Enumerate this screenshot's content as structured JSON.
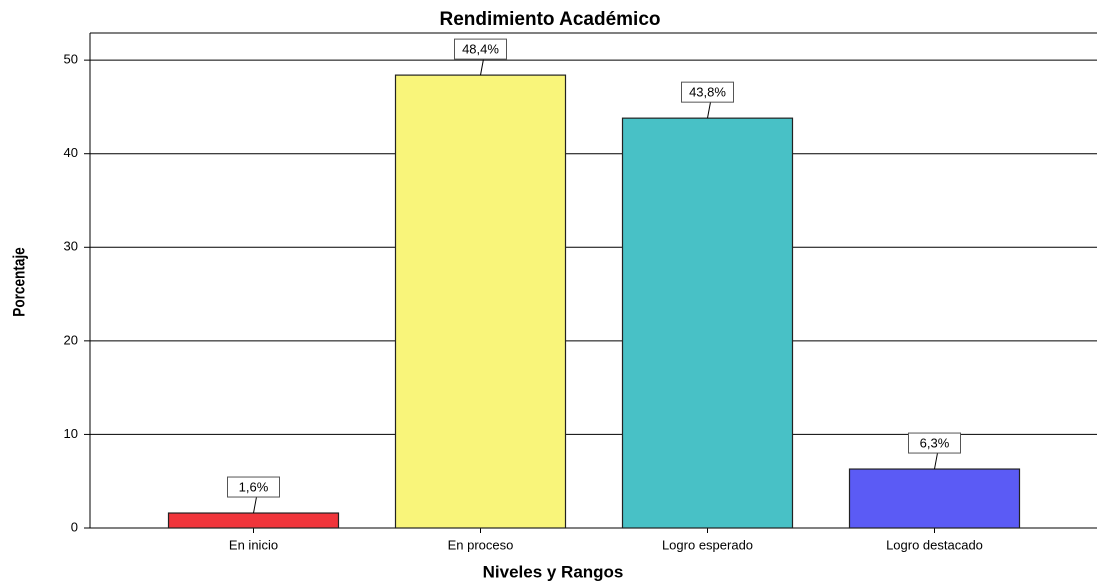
{
  "chart_data": {
    "type": "bar",
    "title": "Rendimiento Académico",
    "x_label": "Niveles y Rangos",
    "y_label": "Porcentaje",
    "categories": [
      "En inicio",
      "En proceso",
      "Logro esperado",
      "Logro destacado"
    ],
    "values": [
      1.6,
      48.4,
      43.8,
      6.3
    ],
    "value_labels": [
      "1,6%",
      "48,4%",
      "43,8%",
      "6,3%"
    ],
    "colors": [
      "#f0353b",
      "#f9f57a",
      "#48c1c6",
      "#5b5bf5"
    ],
    "ylim": [
      0,
      52.9
    ],
    "yticks": [
      0,
      10,
      20,
      30,
      40,
      50
    ],
    "grid": true
  }
}
